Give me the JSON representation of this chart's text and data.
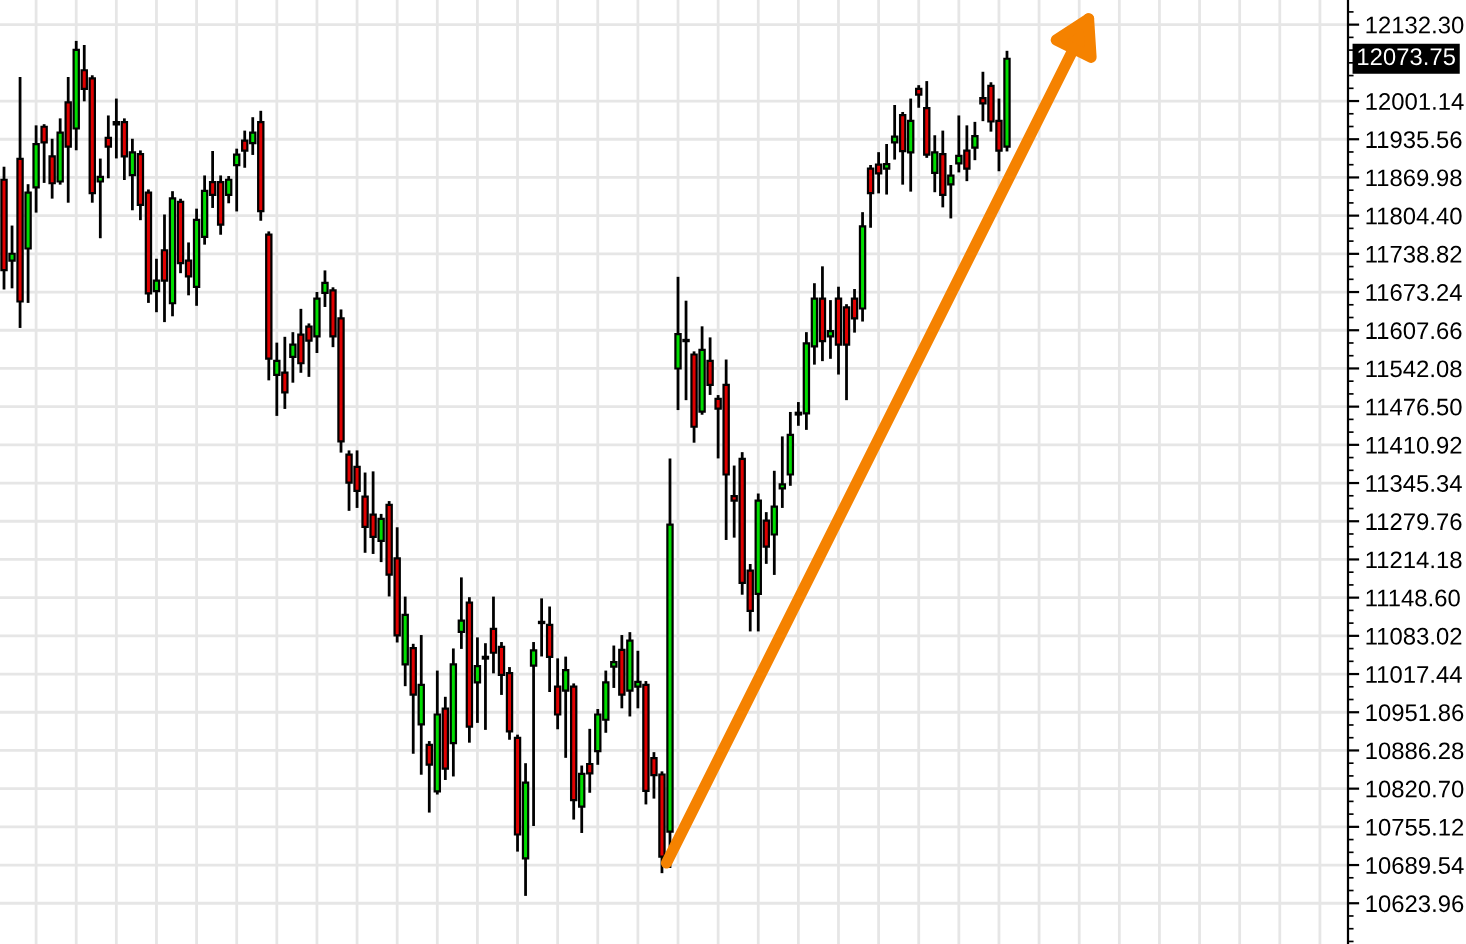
{
  "chart_data": {
    "type": "candlestick",
    "categories": [
      null,
      null,
      null,
      null,
      null,
      null,
      null,
      null,
      null,
      null,
      null,
      null,
      null,
      null,
      null,
      null,
      null,
      null,
      null,
      null,
      null,
      null,
      null,
      null,
      null,
      null,
      null,
      null,
      null,
      null,
      null,
      null,
      null,
      null,
      null,
      null,
      null,
      null,
      null,
      null,
      null,
      null,
      null,
      null,
      null,
      null,
      null,
      null,
      null,
      null,
      null,
      null,
      null,
      null,
      null,
      null,
      null,
      null,
      null,
      null,
      null,
      null,
      null,
      null,
      null,
      null,
      null,
      null,
      null,
      null,
      null,
      null,
      null,
      null,
      null,
      null,
      null,
      null,
      null,
      null,
      null,
      null,
      null,
      null,
      null,
      null,
      null,
      null,
      null,
      null,
      null,
      null,
      null,
      null,
      null,
      null,
      null,
      null,
      null,
      null,
      null,
      null,
      null,
      null,
      null,
      null,
      null,
      null,
      null,
      null,
      null,
      null,
      null,
      null,
      null,
      null,
      null,
      null,
      null,
      null,
      null,
      null,
      null,
      null,
      null,
      null,
      null,
      null,
      null,
      null,
      null,
      null,
      null,
      null,
      null,
      null,
      null,
      null,
      null,
      null,
      null,
      null,
      null,
      null,
      null,
      null,
      null,
      null,
      null,
      null,
      null,
      null,
      null,
      null,
      null,
      null,
      null,
      null,
      null,
      null,
      null,
      null,
      null,
      null,
      null,
      null,
      null,
      null
    ],
    "ohlc": [
      [
        11866,
        11886,
        11680,
        11711
      ],
      [
        11727,
        11785,
        11682,
        11739
      ],
      [
        11902,
        12040,
        11614,
        11657
      ],
      [
        11748,
        11856,
        11657,
        11844
      ],
      [
        11853,
        11957,
        11812,
        11927
      ],
      [
        11957,
        11959,
        11863,
        11930
      ],
      [
        11906,
        11934,
        11836,
        11860
      ],
      [
        11863,
        11969,
        11860,
        11947
      ],
      [
        11999,
        12040,
        11829,
        11923
      ],
      [
        11954,
        12102,
        11919,
        12089
      ],
      [
        12054,
        12095,
        12003,
        12022
      ],
      [
        12040,
        12043,
        11829,
        11843
      ],
      [
        11863,
        11900,
        11768,
        11871
      ],
      [
        11938,
        11974,
        11871,
        11923
      ],
      [
        11965,
        12003,
        11905,
        11961
      ],
      [
        11965,
        11969,
        11868,
        11906
      ],
      [
        11874,
        11934,
        11816,
        11913
      ],
      [
        11910,
        11914,
        11799,
        11823
      ],
      [
        11844,
        11847,
        11657,
        11671
      ],
      [
        11675,
        11728,
        11641,
        11693
      ],
      [
        11745,
        11804,
        11624,
        11693
      ],
      [
        11654,
        11844,
        11634,
        11834
      ],
      [
        11828,
        11831,
        11708,
        11723
      ],
      [
        11727,
        11756,
        11670,
        11700
      ],
      [
        11682,
        11814,
        11652,
        11797
      ],
      [
        11768,
        11871,
        11757,
        11847
      ],
      [
        11862,
        11913,
        11820,
        11840
      ],
      [
        11862,
        11871,
        11774,
        11789
      ],
      [
        11840,
        11870,
        11828,
        11866
      ],
      [
        11891,
        11917,
        11814,
        11909
      ],
      [
        11933,
        11948,
        11889,
        11916
      ],
      [
        11929,
        11971,
        11911,
        11947
      ],
      [
        11965,
        11982,
        11798,
        11812
      ],
      [
        11772,
        11775,
        11524,
        11559
      ],
      [
        11531,
        11584,
        11463,
        11555
      ],
      [
        11535,
        11594,
        11475,
        11501
      ],
      [
        11562,
        11602,
        11520,
        11583
      ],
      [
        11600,
        11642,
        11537,
        11551
      ],
      [
        11614,
        11617,
        11530,
        11590
      ],
      [
        11597,
        11671,
        11571,
        11662
      ],
      [
        11672,
        11708,
        11650,
        11689
      ],
      [
        11676,
        11679,
        11581,
        11597
      ],
      [
        11628,
        11641,
        11400,
        11417
      ],
      [
        11394,
        11399,
        11300,
        11346
      ],
      [
        11373,
        11399,
        11305,
        11332
      ],
      [
        11322,
        11361,
        11228,
        11270
      ],
      [
        11291,
        11363,
        11226,
        11253
      ],
      [
        11246,
        11290,
        11212,
        11284
      ],
      [
        11308,
        11312,
        11153,
        11188
      ],
      [
        11216,
        11267,
        11074,
        11084
      ],
      [
        11034,
        11148,
        10999,
        11119
      ],
      [
        11062,
        11067,
        10883,
        10982
      ],
      [
        10931,
        11082,
        10847,
        10999
      ],
      [
        10896,
        10900,
        10782,
        10862
      ],
      [
        10816,
        11021,
        10813,
        10948
      ],
      [
        10958,
        10976,
        10838,
        10855
      ],
      [
        10899,
        11059,
        10844,
        11034
      ],
      [
        11090,
        11181,
        11063,
        11109
      ],
      [
        11140,
        11147,
        10902,
        10927
      ],
      [
        11003,
        11078,
        10936,
        11031
      ],
      [
        11047,
        11068,
        10924,
        11044
      ],
      [
        11095,
        11148,
        11021,
        11054
      ],
      [
        11064,
        11070,
        10984,
        11016
      ],
      [
        11019,
        11027,
        10907,
        10919
      ],
      [
        10908,
        10911,
        10715,
        10742
      ],
      [
        10701,
        10862,
        10639,
        10831
      ],
      [
        11032,
        11070,
        10759,
        11058
      ],
      [
        11105,
        11145,
        11050,
        11107
      ],
      [
        11102,
        11131,
        10989,
        11047
      ],
      [
        10996,
        11042,
        10925,
        10948
      ],
      [
        10989,
        11045,
        10876,
        11024
      ],
      [
        10996,
        10999,
        10770,
        10801
      ],
      [
        10790,
        10858,
        10747,
        10846
      ],
      [
        10863,
        10921,
        10816,
        10847
      ],
      [
        10885,
        10955,
        10864,
        10948
      ],
      [
        10939,
        11021,
        10919,
        11003
      ],
      [
        11030,
        11064,
        10996,
        11038
      ],
      [
        11059,
        11082,
        10961,
        10982
      ],
      [
        10989,
        11087,
        10947,
        11075
      ],
      [
        10996,
        11055,
        10961,
        11004
      ],
      [
        10999,
        11003,
        10796,
        10817
      ],
      [
        10873,
        10881,
        10806,
        10844
      ],
      [
        10845,
        10848,
        10678,
        10704
      ],
      [
        10747,
        11385,
        10687,
        11274
      ],
      [
        11542,
        11697,
        11473,
        11601
      ],
      [
        11591,
        11656,
        11490,
        11589
      ],
      [
        11566,
        11569,
        11417,
        11442
      ],
      [
        11468,
        11612,
        11465,
        11574
      ],
      [
        11555,
        11593,
        11499,
        11514
      ],
      [
        11490,
        11494,
        11390,
        11473
      ],
      [
        11514,
        11555,
        11250,
        11360
      ],
      [
        11323,
        11373,
        11254,
        11315
      ],
      [
        11387,
        11396,
        11156,
        11174
      ],
      [
        11195,
        11204,
        11093,
        11126
      ],
      [
        11155,
        11325,
        11093,
        11315
      ],
      [
        11281,
        11293,
        11209,
        11236
      ],
      [
        11257,
        11364,
        11190,
        11305
      ],
      [
        11336,
        11423,
        11305,
        11343
      ],
      [
        11360,
        11465,
        11343,
        11428
      ],
      [
        11463,
        11482,
        11446,
        11466
      ],
      [
        11465,
        11602,
        11439,
        11585
      ],
      [
        11580,
        11686,
        11551,
        11662
      ],
      [
        11662,
        11715,
        11557,
        11589
      ],
      [
        11597,
        11657,
        11561,
        11606
      ],
      [
        11662,
        11680,
        11534,
        11583
      ],
      [
        11647,
        11650,
        11490,
        11583
      ],
      [
        11662,
        11676,
        11606,
        11628
      ],
      [
        11645,
        11808,
        11625,
        11786
      ],
      [
        11885,
        11889,
        11786,
        11843
      ],
      [
        11892,
        11911,
        11845,
        11877
      ],
      [
        11885,
        11925,
        11843,
        11893
      ],
      [
        11930,
        11992,
        11903,
        11940
      ],
      [
        11977,
        11980,
        11860,
        11915
      ],
      [
        11913,
        12003,
        11848,
        11967
      ],
      [
        12022,
        12026,
        11992,
        12012
      ],
      [
        11989,
        12033,
        11906,
        11909
      ],
      [
        11878,
        11940,
        11847,
        11913
      ],
      [
        11910,
        11948,
        11821,
        11840
      ],
      [
        11858,
        11889,
        11802,
        11873
      ],
      [
        11894,
        11974,
        11881,
        11907
      ],
      [
        11916,
        11957,
        11866,
        11885
      ],
      [
        11921,
        11963,
        11902,
        11941
      ],
      [
        12006,
        12049,
        11969,
        11997
      ],
      [
        12027,
        12031,
        11951,
        11966
      ],
      [
        11967,
        12003,
        11883,
        11916
      ],
      [
        11923,
        12085,
        11917,
        12073.75
      ],
      null,
      null,
      null,
      null,
      null,
      null,
      null,
      null,
      null,
      null,
      null,
      null,
      null,
      null,
      null,
      null,
      null,
      null,
      null,
      null,
      null,
      null,
      null,
      null,
      null,
      null,
      null,
      null,
      null,
      null,
      null,
      null,
      null,
      null,
      null,
      null,
      null,
      null,
      null,
      null,
      null,
      null
    ],
    "colors": [
      "#e00000",
      "#00dd00",
      "#e00000",
      "#00dd00",
      "#00dd00",
      "#e00000",
      "#e00000",
      "#00dd00",
      "#e00000",
      "#00dd00",
      "#e00000",
      "#e00000",
      "#00dd00",
      "#e00000",
      "#e00000",
      "#e00000",
      "#00dd00",
      "#e00000",
      "#e00000",
      "#00dd00",
      "#e00000",
      "#00dd00",
      "#e00000",
      "#e00000",
      "#00dd00",
      "#00dd00",
      "#e00000",
      "#e00000",
      "#00dd00",
      "#00dd00",
      "#e00000",
      "#00dd00",
      "#e00000",
      "#e00000",
      "#00dd00",
      "#e00000",
      "#00dd00",
      "#e00000",
      "#e00000",
      "#00dd00",
      "#00dd00",
      "#e00000",
      "#e00000",
      "#e00000",
      "#e00000",
      "#e00000",
      "#e00000",
      "#00dd00",
      "#e00000",
      "#e00000",
      "#00dd00",
      "#e00000",
      "#00dd00",
      "#e00000",
      "#00dd00",
      "#e00000",
      "#00dd00",
      "#00dd00",
      "#e00000",
      "#00dd00",
      "#e00000",
      "#e00000",
      "#e00000",
      "#e00000",
      "#e00000",
      "#00dd00",
      "#00dd00",
      "#00dd00",
      "#e00000",
      "#e00000",
      "#00dd00",
      "#e00000",
      "#00dd00",
      "#e00000",
      "#00dd00",
      "#00dd00",
      "#00dd00",
      "#e00000",
      "#00dd00",
      "#00dd00",
      "#e00000",
      "#e00000",
      "#e00000",
      "#00dd00",
      "#00dd00",
      "#e00000",
      "#e00000",
      "#00dd00",
      "#e00000",
      "#e00000",
      "#e00000",
      "#e00000",
      "#e00000",
      "#e00000",
      "#00dd00",
      "#e00000",
      "#00dd00",
      "#00dd00",
      "#00dd00",
      "#00dd00",
      "#00dd00",
      "#00dd00",
      "#e00000",
      "#00dd00",
      "#e00000",
      "#e00000",
      "#e00000",
      "#00dd00",
      "#e00000",
      "#e00000",
      "#00dd00",
      "#00dd00",
      "#e00000",
      "#00dd00",
      "#e00000",
      "#e00000",
      "#00dd00",
      "#e00000",
      "#00dd00",
      "#00dd00",
      "#e00000",
      "#00dd00",
      "#e00000",
      "#e00000",
      "#e00000",
      "#00dd00",
      null,
      null,
      null,
      null,
      null,
      null,
      null,
      null,
      null,
      null,
      null,
      null,
      null,
      null,
      null,
      null,
      null,
      null,
      null,
      null,
      null,
      null,
      null,
      null,
      null,
      null,
      null,
      null,
      null,
      null,
      null,
      null,
      null,
      null,
      null,
      null,
      null,
      null,
      null,
      null,
      null,
      null
    ],
    "ylim": [
      10554,
      12174.6
    ],
    "yticks": [
      {
        "value": 12132.3,
        "label": "12132.30"
      },
      12001.14,
      11935.56,
      11869.98,
      {
        "value": 11804.4,
        "label": "11804.40"
      },
      11738.82,
      11673.24,
      11607.66,
      11542.08,
      {
        "value": 11476.5,
        "label": "11476.50"
      },
      11410.92,
      11345.34,
      11279.76,
      11214.18,
      {
        "value": 11148.6,
        "label": "11148.60"
      },
      11083.02,
      11017.44,
      10951.86,
      10886.28,
      {
        "value": 10820.7,
        "label": "10820.70"
      },
      10755.12,
      10689.54,
      10623.96
    ],
    "grid": true,
    "tick_labels": "y",
    "annotations": [
      "12073.75"
    ]
  }
}
